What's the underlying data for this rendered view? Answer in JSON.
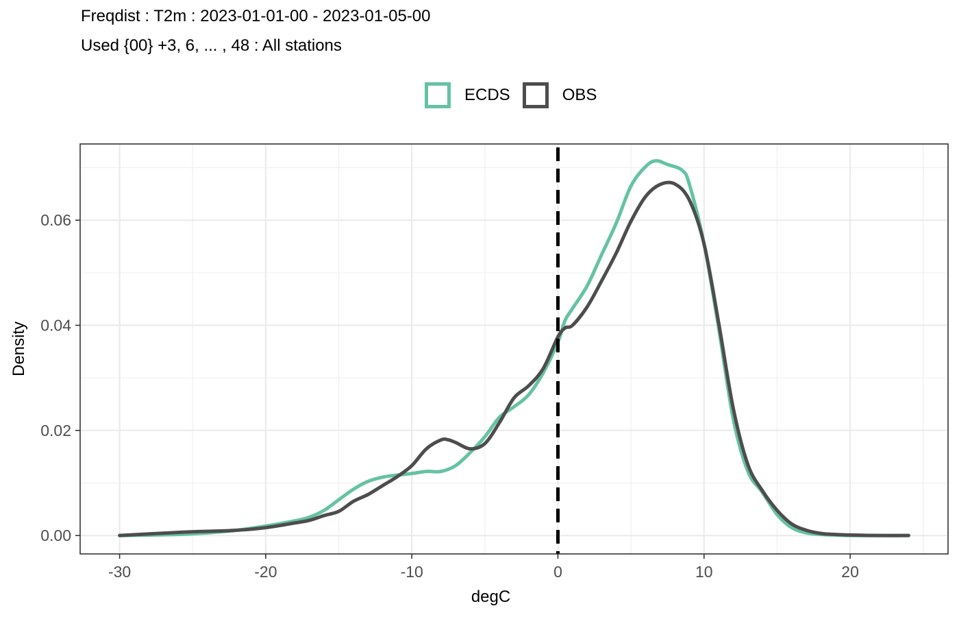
{
  "chart_data": {
    "type": "line",
    "title": "Freqdist : T2m : 2023-01-01-00 - 2023-01-05-00",
    "subtitle": "Used {00} +3, 6, ... , 48 : All stations",
    "xlabel": "degC",
    "ylabel": "Density",
    "xlim": [
      -32.7,
      26.7
    ],
    "ylim": [
      -0.0035,
      0.0745
    ],
    "xticks": [
      -30,
      -20,
      -10,
      0,
      10,
      20
    ],
    "xtick_labels": [
      "-30",
      "-20",
      "-10",
      "0",
      "10",
      "20"
    ],
    "yticks": [
      0.0,
      0.02,
      0.04,
      0.06
    ],
    "ytick_labels": [
      "0.00",
      "0.02",
      "0.04",
      "0.06"
    ],
    "grid": true,
    "legend_position": "top",
    "reference_line": {
      "x": 0,
      "style": "dashed",
      "color": "#000000"
    },
    "series": [
      {
        "name": "ECDS",
        "color": "#66c2a5",
        "x": [
          -30,
          -26,
          -24,
          -22,
          -20,
          -18,
          -17,
          -16,
          -15,
          -14,
          -13,
          -12,
          -11,
          -10,
          -9,
          -8,
          -7,
          -6,
          -5,
          -4,
          -3,
          -2,
          -1,
          0,
          0.5,
          1,
          2,
          3,
          4,
          5,
          6,
          6.7,
          7.5,
          8.5,
          9,
          10,
          11,
          12,
          13,
          14,
          15,
          16,
          17,
          18,
          19,
          20,
          22,
          24
        ],
        "y": [
          0.0,
          0.0002,
          0.0005,
          0.001,
          0.0018,
          0.0028,
          0.0035,
          0.0048,
          0.0068,
          0.0088,
          0.0103,
          0.0111,
          0.0115,
          0.0118,
          0.0122,
          0.0122,
          0.0133,
          0.0158,
          0.0188,
          0.0225,
          0.0245,
          0.0268,
          0.031,
          0.0368,
          0.041,
          0.0432,
          0.0475,
          0.0535,
          0.0595,
          0.0665,
          0.0702,
          0.0713,
          0.0706,
          0.0695,
          0.0668,
          0.0555,
          0.0395,
          0.0222,
          0.0122,
          0.0082,
          0.004,
          0.0015,
          0.0005,
          0.0002,
          0.0001,
          0.0,
          0.0,
          0.0
        ]
      },
      {
        "name": "OBS",
        "color": "#4d4d4d",
        "x": [
          -30,
          -26,
          -24,
          -22,
          -20,
          -18,
          -17,
          -16,
          -15,
          -14,
          -13,
          -12,
          -11,
          -10,
          -9,
          -8,
          -7.5,
          -7,
          -6,
          -5,
          -4,
          -3,
          -2,
          -1,
          0,
          0.5,
          1,
          2,
          3,
          4,
          5,
          6,
          7,
          8,
          9,
          10,
          11,
          12,
          13,
          14,
          15,
          16,
          17,
          18,
          19,
          20,
          22,
          24
        ],
        "y": [
          0.0,
          0.0006,
          0.0008,
          0.001,
          0.0015,
          0.0024,
          0.0029,
          0.0038,
          0.0046,
          0.0065,
          0.0078,
          0.0095,
          0.0112,
          0.0133,
          0.0165,
          0.0182,
          0.0182,
          0.0177,
          0.0165,
          0.0175,
          0.0215,
          0.0262,
          0.0285,
          0.0318,
          0.0378,
          0.0395,
          0.04,
          0.0435,
          0.0485,
          0.0538,
          0.0598,
          0.0645,
          0.0668,
          0.0669,
          0.0638,
          0.0555,
          0.0405,
          0.0242,
          0.0135,
          0.0085,
          0.0048,
          0.0022,
          0.001,
          0.0004,
          0.0002,
          0.0001,
          0.0,
          0.0
        ]
      }
    ]
  }
}
